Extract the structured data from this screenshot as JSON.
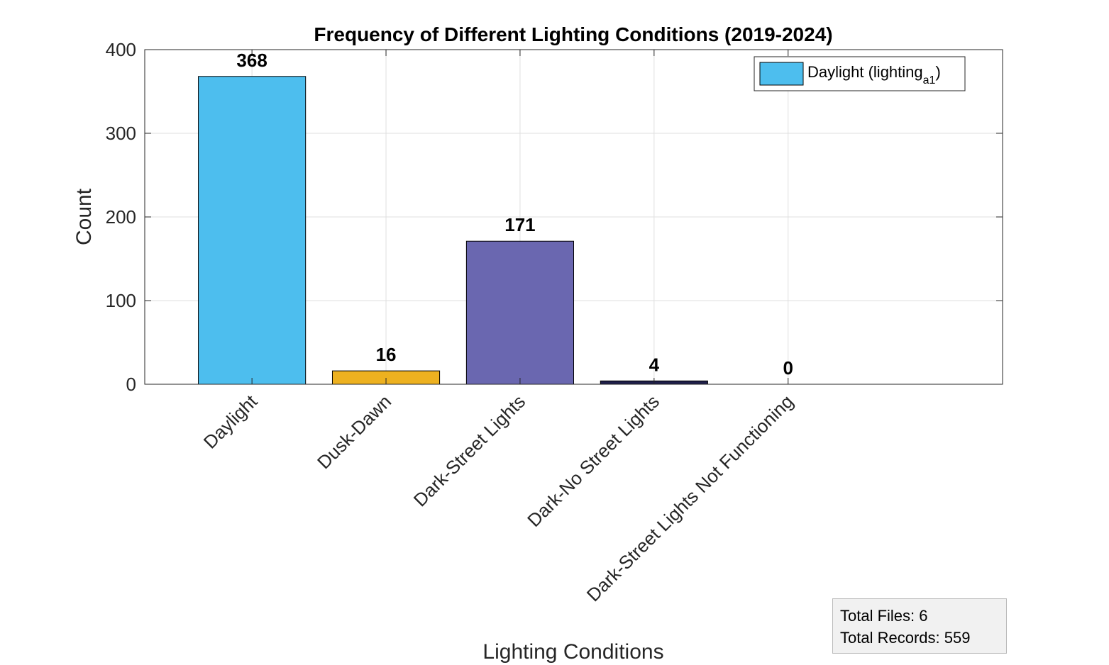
{
  "chart_data": {
    "type": "bar",
    "title": "Frequency of Different Lighting Conditions (2019-2024)",
    "xlabel": "Lighting Conditions",
    "ylabel": "Count",
    "categories": [
      "Daylight",
      "Dusk-Dawn",
      "Dark-Street Lights",
      "Dark-No Street Lights",
      "Dark-Street Lights Not Functioning"
    ],
    "values": [
      368,
      16,
      171,
      4,
      0
    ],
    "data_labels": [
      "368",
      "16",
      "171",
      "4",
      "0"
    ],
    "bar_colors": [
      "#4dbeee",
      "#edb120",
      "#6a67b0",
      "#1f1f4a",
      "#7e2f8e"
    ],
    "ylim": [
      0,
      400
    ],
    "yticks": [
      0,
      100,
      200,
      300,
      400
    ],
    "xlim": [
      0.2,
      6.6
    ],
    "grid": true,
    "legend": {
      "placement": "top-right",
      "label_main": "Daylight (lighting",
      "label_sub": "a1",
      "label_end": ")",
      "color": "#4dbeee"
    }
  },
  "info_box": {
    "total_files": "Total Files: 6",
    "total_records": "Total Records: 559"
  }
}
